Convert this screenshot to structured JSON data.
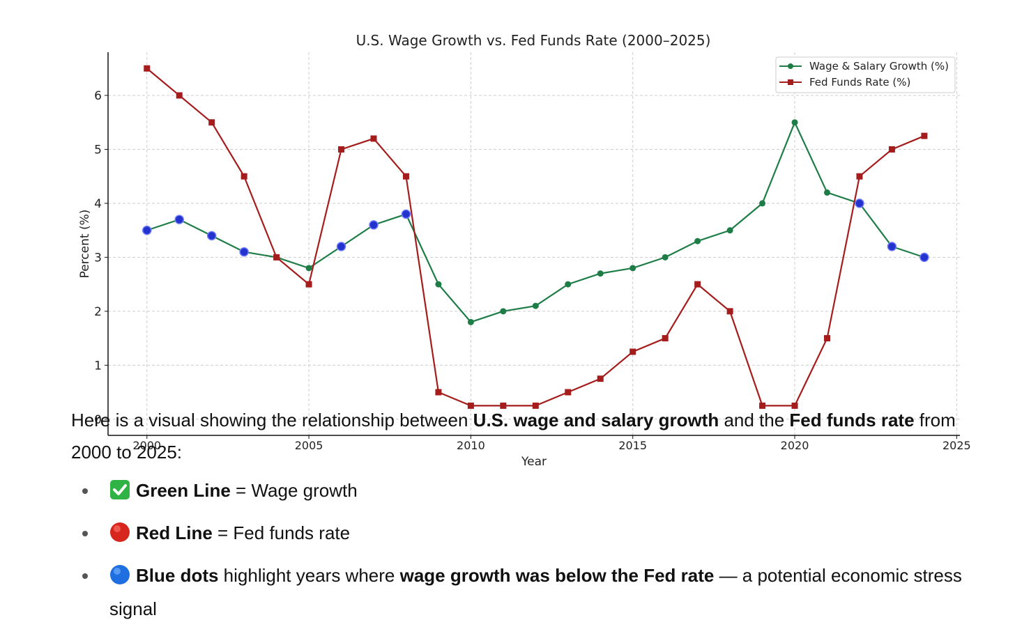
{
  "chart_data": {
    "type": "line",
    "title": "U.S. Wage Growth vs. Fed Funds Rate (2000–2025)",
    "xlabel": "Year",
    "ylabel": "Percent (%)",
    "xlim": [
      1998.8,
      2025.1
    ],
    "ylim": [
      -0.3,
      6.8
    ],
    "xticks": [
      2000,
      2005,
      2010,
      2015,
      2020,
      2025
    ],
    "yticks": [
      0,
      1,
      2,
      3,
      4,
      5,
      6
    ],
    "grid": true,
    "legend_position": "top-right",
    "x": [
      2000,
      2001,
      2002,
      2003,
      2004,
      2005,
      2006,
      2007,
      2008,
      2009,
      2010,
      2011,
      2012,
      2013,
      2014,
      2015,
      2016,
      2017,
      2018,
      2019,
      2020,
      2021,
      2022,
      2023,
      2024
    ],
    "series": [
      {
        "name": "Wage & Salary Growth (%)",
        "color": "#1e7d46",
        "marker": "circle",
        "values": [
          3.5,
          3.7,
          3.4,
          3.1,
          3.0,
          2.8,
          3.2,
          3.6,
          3.8,
          2.5,
          1.8,
          2.0,
          2.1,
          2.5,
          2.7,
          2.8,
          3.0,
          3.3,
          3.5,
          4.0,
          5.5,
          4.2,
          4.0,
          3.2,
          3.0
        ]
      },
      {
        "name": "Fed Funds Rate (%)",
        "color": "#a51c1c",
        "marker": "square",
        "values": [
          6.5,
          6.0,
          5.5,
          4.5,
          3.0,
          2.5,
          5.0,
          5.2,
          4.5,
          0.5,
          0.25,
          0.25,
          0.25,
          0.5,
          0.75,
          1.25,
          1.5,
          2.5,
          2.0,
          0.25,
          0.25,
          1.5,
          4.5,
          5.0,
          5.25
        ]
      }
    ],
    "highlight": {
      "color": "#2433cc",
      "years": [
        2000,
        2001,
        2002,
        2003,
        2006,
        2007,
        2008,
        2022,
        2023,
        2024
      ]
    }
  },
  "text": {
    "intro": {
      "p1": "Here is a visual showing the relationship between ",
      "b1": "U.S. wage and salary growth",
      "p2": " and the ",
      "b2": "Fed funds rate",
      "p3": " from 2000 to 2025:"
    },
    "bullets": [
      {
        "icon": "green-check-icon",
        "bold": "Green Line",
        "rest": " = Wage growth"
      },
      {
        "icon": "red-circle-icon",
        "bold": "Red Line",
        "rest": " = Fed funds rate"
      },
      {
        "icon": "blue-circle-icon",
        "pre": "",
        "bold": "Blue dots",
        "mid": " highlight years where ",
        "bold2": "wage growth was below the Fed rate",
        "rest": " — a potential economic stress signal"
      }
    ]
  }
}
